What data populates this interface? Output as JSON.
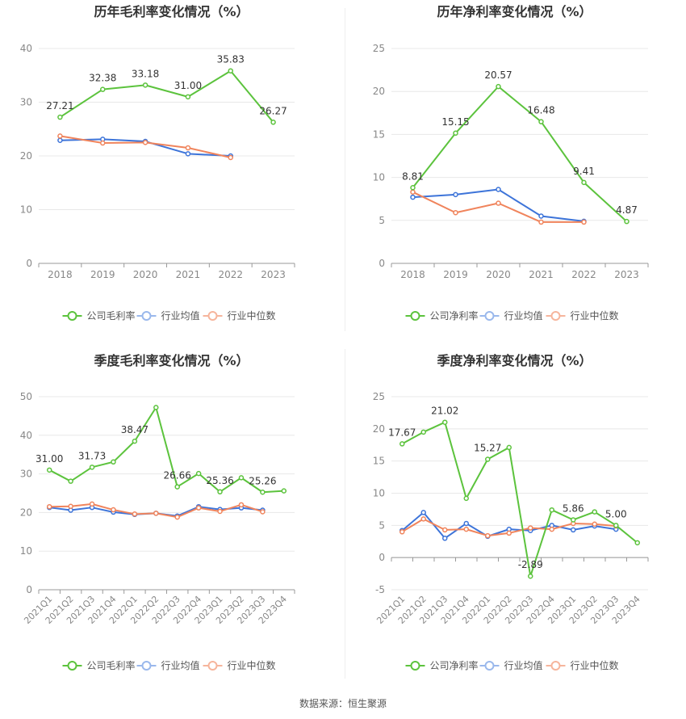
{
  "colors": {
    "company": "#5cc33d",
    "avg": "#3d74d9",
    "median": "#f0845c",
    "legend_avg_light": "#9ab8ec",
    "legend_median_light": "#f6b59c",
    "grid": "#e8e8e8",
    "axis_text": "#888888",
    "title": "#333333"
  },
  "source_text": "数据来源：恒生聚源",
  "chart_data": [
    {
      "type": "line",
      "title": "历年毛利率变化情况（%）",
      "categories": [
        "2018",
        "2019",
        "2020",
        "2021",
        "2022",
        "2023"
      ],
      "ylim": [
        0,
        40
      ],
      "yticks": [
        0,
        10,
        20,
        30,
        40
      ],
      "grid": true,
      "legend_position": "bottom",
      "legend": [
        "公司毛利率",
        "行业均值",
        "行业中位数"
      ],
      "series": [
        {
          "name": "公司毛利率",
          "values": [
            27.21,
            32.38,
            33.18,
            31.0,
            35.83,
            26.27
          ],
          "labels": [
            "27.21",
            "32.38",
            "33.18",
            "31.00",
            "35.83",
            "26.27"
          ]
        },
        {
          "name": "行业均值",
          "values": [
            22.9,
            23.1,
            22.7,
            20.4,
            20.0,
            null
          ]
        },
        {
          "name": "行业中位数",
          "values": [
            23.7,
            22.4,
            22.5,
            21.5,
            19.7,
            null
          ]
        }
      ]
    },
    {
      "type": "line",
      "title": "历年净利率变化情况（%）",
      "categories": [
        "2018",
        "2019",
        "2020",
        "2021",
        "2022",
        "2023"
      ],
      "ylim": [
        0,
        25
      ],
      "yticks": [
        0,
        5,
        10,
        15,
        20,
        25
      ],
      "grid": true,
      "legend_position": "bottom",
      "legend": [
        "公司净利率",
        "行业均值",
        "行业中位数"
      ],
      "series": [
        {
          "name": "公司净利率",
          "values": [
            8.81,
            15.15,
            20.57,
            16.48,
            9.41,
            4.87
          ],
          "labels": [
            "8.81",
            "15.15",
            "20.57",
            "16.48",
            "9.41",
            "4.87"
          ]
        },
        {
          "name": "行业均值",
          "values": [
            7.7,
            8.0,
            8.6,
            5.5,
            4.9,
            null
          ]
        },
        {
          "name": "行业中位数",
          "values": [
            8.3,
            5.9,
            7.0,
            4.8,
            4.8,
            null
          ]
        }
      ]
    },
    {
      "type": "line",
      "title": "季度毛利率变化情况（%）",
      "categories": [
        "2021Q1",
        "2021Q2",
        "2021Q3",
        "2021Q4",
        "2022Q1",
        "2022Q2",
        "2022Q3",
        "2022Q4",
        "2023Q1",
        "2023Q2",
        "2023Q3",
        "2023Q4"
      ],
      "ylim": [
        0,
        50
      ],
      "yticks": [
        0,
        10,
        20,
        30,
        40,
        50
      ],
      "grid": true,
      "legend_position": "bottom",
      "legend": [
        "公司毛利率",
        "行业均值",
        "行业中位数"
      ],
      "series": [
        {
          "name": "公司毛利率",
          "values": [
            31.0,
            28.1,
            31.73,
            33.1,
            38.47,
            47.2,
            26.66,
            30.1,
            25.36,
            29.0,
            25.26,
            25.6
          ],
          "labels": [
            "31.00",
            "",
            "31.73",
            "",
            "38.47",
            "",
            "26.66",
            "",
            "25.36",
            "",
            "25.26",
            ""
          ]
        },
        {
          "name": "行业均值",
          "values": [
            21.3,
            20.6,
            21.3,
            20.1,
            19.5,
            19.8,
            19.1,
            21.5,
            20.8,
            21.2,
            20.6,
            null
          ]
        },
        {
          "name": "行业中位数",
          "values": [
            21.5,
            21.6,
            22.2,
            20.7,
            19.6,
            19.8,
            18.8,
            21.2,
            20.3,
            22.0,
            20.2,
            null
          ]
        }
      ]
    },
    {
      "type": "line",
      "title": "季度净利率变化情况（%）",
      "categories": [
        "2021Q1",
        "2021Q2",
        "2021Q3",
        "2021Q4",
        "2022Q1",
        "2022Q2",
        "2022Q3",
        "2022Q4",
        "2023Q1",
        "2023Q2",
        "2023Q3",
        "2023Q4"
      ],
      "ylim": [
        -5,
        25
      ],
      "yticks": [
        -5,
        0,
        5,
        10,
        15,
        20,
        25
      ],
      "grid": true,
      "legend_position": "bottom",
      "legend": [
        "公司净利率",
        "行业均值",
        "行业中位数"
      ],
      "series": [
        {
          "name": "公司净利率",
          "values": [
            17.67,
            19.5,
            21.02,
            9.2,
            15.27,
            17.1,
            -2.89,
            7.4,
            5.86,
            7.1,
            5.0,
            2.3
          ],
          "labels": [
            "17.67",
            "",
            "21.02",
            "",
            "15.27",
            "",
            "-2.89",
            "",
            "5.86",
            "",
            "5.00",
            ""
          ]
        },
        {
          "name": "行业均值",
          "values": [
            4.2,
            7.0,
            3.0,
            5.3,
            3.3,
            4.4,
            4.2,
            5.0,
            4.3,
            4.9,
            4.4,
            null
          ]
        },
        {
          "name": "行业中位数",
          "values": [
            4.0,
            6.0,
            4.3,
            4.4,
            3.4,
            3.8,
            4.6,
            4.4,
            5.3,
            5.2,
            4.9,
            null
          ]
        }
      ]
    }
  ]
}
